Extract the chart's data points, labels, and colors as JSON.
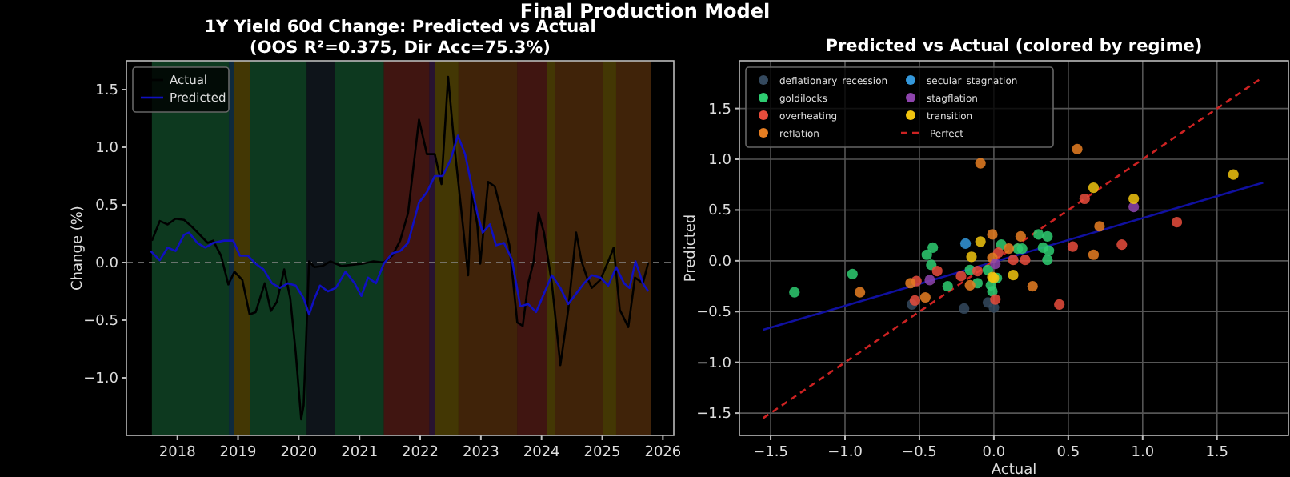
{
  "chart_data": [
    {
      "type": "line",
      "title": "1Y Yield 60d Change: Predicted vs Actual",
      "subtitle": "(OOS R²=0.375, Dir Acc=75.3%)",
      "ylabel": "Change (%)",
      "annotations": [
        "Final Production Model"
      ],
      "xlim": [
        2017.16,
        2026.18
      ],
      "ylim": [
        -1.5,
        1.75
      ],
      "xticks": [
        2018,
        2019,
        2020,
        2021,
        2022,
        2023,
        2024,
        2025,
        2026
      ],
      "yticks": [
        {
          "value": -1.0,
          "label": "−1.0"
        },
        {
          "value": -0.5,
          "label": "−0.5"
        },
        {
          "value": 0,
          "label": "0.0"
        },
        {
          "value": 0.5,
          "label": "0.5"
        },
        {
          "value": 1.0,
          "label": "1.0"
        },
        {
          "value": 1.5,
          "label": "1.5"
        }
      ],
      "legend": "top left",
      "grid": false,
      "ref_lines": [
        {
          "axis": "y",
          "value": 0,
          "color": "#888888",
          "line_style": "dashed"
        }
      ],
      "bands": [
        {
          "axis": "x",
          "from": 2017.58,
          "to": 2018.85,
          "color": "#2ecc71"
        },
        {
          "axis": "x",
          "from": 2018.85,
          "to": 2018.94,
          "color": "#3498db"
        },
        {
          "axis": "x",
          "from": 2018.94,
          "to": 2019.2,
          "color": "#f1c40f"
        },
        {
          "axis": "x",
          "from": 2019.2,
          "to": 2020.13,
          "color": "#2ecc71"
        },
        {
          "axis": "x",
          "from": 2020.13,
          "to": 2020.59,
          "color": "#34495e"
        },
        {
          "axis": "x",
          "from": 2020.59,
          "to": 2021.4,
          "color": "#2ecc71"
        },
        {
          "axis": "x",
          "from": 2021.4,
          "to": 2022.15,
          "color": "#e74c3c"
        },
        {
          "axis": "x",
          "from": 2022.15,
          "to": 2022.24,
          "color": "#8e44ad"
        },
        {
          "axis": "x",
          "from": 2022.24,
          "to": 2022.63,
          "color": "#f1c40f"
        },
        {
          "axis": "x",
          "from": 2022.63,
          "to": 2023.6,
          "color": "#e67e22"
        },
        {
          "axis": "x",
          "from": 2023.6,
          "to": 2024.09,
          "color": "#e74c3c"
        },
        {
          "axis": "x",
          "from": 2024.09,
          "to": 2024.22,
          "color": "#f1c40f"
        },
        {
          "axis": "x",
          "from": 2024.22,
          "to": 2025.01,
          "color": "#e67e22"
        },
        {
          "axis": "x",
          "from": 2025.01,
          "to": 2025.23,
          "color": "#f1c40f"
        },
        {
          "axis": "x",
          "from": 2025.23,
          "to": 2025.8,
          "color": "#e67e22"
        }
      ],
      "series": [
        {
          "name": "Actual",
          "color": "#000000",
          "x": [
            2017.58,
            2017.71,
            2017.84,
            2017.97,
            2018.11,
            2018.24,
            2018.37,
            2018.5,
            2018.59,
            2018.72,
            2018.84,
            2018.94,
            2019.07,
            2019.19,
            2019.29,
            2019.44,
            2019.54,
            2019.64,
            2019.76,
            2019.86,
            2019.95,
            2020.04,
            2020.08,
            2020.17,
            2020.26,
            2020.39,
            2020.52,
            2020.7,
            2020.88,
            2021.05,
            2021.23,
            2021.4,
            2021.54,
            2021.67,
            2021.8,
            2021.98,
            2022.11,
            2022.24,
            2022.35,
            2022.46,
            2022.56,
            2022.72,
            2022.79,
            2022.85,
            2022.94,
            2022.99,
            2023.12,
            2023.23,
            2023.34,
            2023.47,
            2023.6,
            2023.69,
            2023.78,
            2023.87,
            2023.95,
            2024.04,
            2024.17,
            2024.31,
            2024.44,
            2024.57,
            2024.66,
            2024.75,
            2024.83,
            2024.97,
            2025.1,
            2025.19,
            2025.29,
            2025.43,
            2025.54,
            2025.67,
            2025.76
          ],
          "values": [
            0.19,
            0.36,
            0.33,
            0.38,
            0.37,
            0.31,
            0.24,
            0.17,
            0.19,
            0.06,
            -0.19,
            -0.08,
            -0.15,
            -0.45,
            -0.43,
            -0.18,
            -0.42,
            -0.34,
            -0.06,
            -0.31,
            -0.78,
            -1.36,
            -1.24,
            0.01,
            -0.04,
            -0.03,
            0.01,
            -0.03,
            -0.02,
            -0.01,
            0.01,
            0.0,
            0.06,
            0.19,
            0.43,
            1.24,
            0.94,
            0.94,
            0.68,
            1.61,
            1.03,
            0.24,
            -0.11,
            0.61,
            0.33,
            -0.01,
            0.7,
            0.66,
            0.43,
            0.15,
            -0.52,
            -0.55,
            -0.18,
            0.01,
            0.43,
            0.26,
            -0.18,
            -0.89,
            -0.41,
            0.26,
            0.01,
            -0.13,
            -0.22,
            -0.15,
            0.01,
            0.13,
            -0.41,
            -0.56,
            -0.13,
            -0.18,
            0.0
          ]
        },
        {
          "name": "Predicted",
          "color": "#1010c0",
          "x": [
            2017.56,
            2017.71,
            2017.84,
            2017.97,
            2018.11,
            2018.19,
            2018.33,
            2018.46,
            2018.59,
            2018.77,
            2018.92,
            2019.03,
            2019.16,
            2019.29,
            2019.42,
            2019.56,
            2019.69,
            2019.82,
            2019.95,
            2020.08,
            2020.17,
            2020.26,
            2020.35,
            2020.48,
            2020.61,
            2020.77,
            2020.92,
            2021.03,
            2021.14,
            2021.27,
            2021.4,
            2021.54,
            2021.67,
            2021.8,
            2021.98,
            2022.11,
            2022.24,
            2022.37,
            2022.5,
            2022.62,
            2022.74,
            2022.85,
            2022.94,
            2023.03,
            2023.15,
            2023.25,
            2023.38,
            2023.51,
            2023.65,
            2023.78,
            2023.91,
            2024.04,
            2024.17,
            2024.31,
            2024.44,
            2024.57,
            2024.7,
            2024.83,
            2024.97,
            2025.1,
            2025.23,
            2025.36,
            2025.45,
            2025.55,
            2025.67,
            2025.76
          ],
          "values": [
            0.1,
            0.02,
            0.13,
            0.1,
            0.24,
            0.26,
            0.17,
            0.13,
            0.17,
            0.19,
            0.19,
            0.06,
            0.06,
            -0.01,
            -0.06,
            -0.18,
            -0.22,
            -0.18,
            -0.2,
            -0.31,
            -0.45,
            -0.31,
            -0.2,
            -0.25,
            -0.22,
            -0.08,
            -0.18,
            -0.29,
            -0.13,
            -0.18,
            -0.01,
            0.08,
            0.1,
            0.17,
            0.52,
            0.61,
            0.75,
            0.75,
            0.89,
            1.1,
            0.94,
            0.66,
            0.43,
            0.26,
            0.33,
            0.15,
            0.17,
            0.03,
            -0.38,
            -0.36,
            -0.43,
            -0.27,
            -0.11,
            -0.22,
            -0.36,
            -0.27,
            -0.18,
            -0.11,
            -0.13,
            -0.2,
            -0.04,
            -0.18,
            -0.22,
            0.01,
            -0.18,
            -0.25
          ]
        }
      ]
    },
    {
      "type": "scatter",
      "title": "Predicted vs Actual (colored by regime)",
      "xlabel": "Actual",
      "ylabel": "Predicted",
      "marker": "circle",
      "grid": true,
      "legend": "top left",
      "xlim": [
        -1.71,
        1.98
      ],
      "ylim": [
        -1.72,
        1.97
      ],
      "xticks": [
        {
          "value": -1.5,
          "label": "−1.5"
        },
        {
          "value": -1.0,
          "label": "−1.0"
        },
        {
          "value": -0.5,
          "label": "−0.5"
        },
        {
          "value": 0,
          "label": "0.0"
        },
        {
          "value": 0.5,
          "label": "0.5"
        },
        {
          "value": 1.0,
          "label": "1.0"
        },
        {
          "value": 1.5,
          "label": "1.5"
        }
      ],
      "yticks": [
        {
          "value": -1.5,
          "label": "−1.5"
        },
        {
          "value": -1.0,
          "label": "−1.0"
        },
        {
          "value": -0.5,
          "label": "−0.5"
        },
        {
          "value": 0,
          "label": "0.0"
        },
        {
          "value": 0.5,
          "label": "0.5"
        },
        {
          "value": 1.0,
          "label": "1.0"
        },
        {
          "value": 1.5,
          "label": "1.5"
        }
      ],
      "series": [
        {
          "type": "line",
          "marker": "none",
          "color": "#1010a0",
          "x": [
            -1.55,
            1.81
          ],
          "values": [
            -0.68,
            0.77
          ]
        },
        {
          "name": "deflationary_recession",
          "color": "#34495e",
          "x": [
            -0.55,
            -0.2,
            -0.04,
            0.0
          ],
          "values": [
            -0.43,
            -0.47,
            -0.41,
            -0.46
          ]
        },
        {
          "name": "goldilocks",
          "color": "#2ecc71",
          "x": [
            0.3,
            0.36,
            -1.34,
            -0.95,
            -0.45,
            -0.41,
            -0.42,
            -0.31,
            -0.16,
            -0.11,
            -0.04,
            -0.02,
            -0.01,
            0.02,
            0.05,
            0.16,
            0.19,
            0.33,
            0.37,
            0.36
          ],
          "values": [
            0.26,
            0.24,
            -0.31,
            -0.13,
            0.06,
            0.13,
            -0.04,
            -0.25,
            -0.09,
            -0.22,
            -0.09,
            -0.24,
            -0.3,
            -0.17,
            0.16,
            0.12,
            0.12,
            0.13,
            0.1,
            0.01
          ]
        },
        {
          "name": "overheating",
          "color": "#e74c3c",
          "x": [
            0.61,
            1.23,
            -0.52,
            -0.53,
            -0.38,
            -0.22,
            -0.11,
            0.01,
            0.03,
            0.13,
            0.21,
            0.44,
            0.53,
            0.86
          ],
          "values": [
            0.61,
            0.38,
            -0.2,
            -0.39,
            -0.1,
            -0.15,
            -0.1,
            -0.38,
            0.08,
            0.01,
            0.01,
            -0.43,
            0.14,
            0.16
          ]
        },
        {
          "name": "reflation",
          "color": "#e67e22",
          "x": [
            -0.09,
            0.56,
            0.71,
            -0.01,
            0.18,
            -0.9,
            -0.56,
            -0.46,
            -0.16,
            -0.01,
            0.1,
            0.26,
            0.67
          ],
          "values": [
            0.96,
            1.1,
            0.34,
            0.26,
            0.24,
            -0.31,
            -0.22,
            -0.36,
            -0.24,
            0.03,
            0.12,
            -0.25,
            0.06
          ]
        },
        {
          "name": "secular_stagnation",
          "color": "#3498db",
          "x": [
            -0.19
          ],
          "values": [
            0.17
          ]
        },
        {
          "name": "stagflation",
          "color": "#8e44ad",
          "x": [
            0.94,
            -0.43,
            0.01
          ],
          "values": [
            0.53,
            -0.19,
            -0.03
          ]
        },
        {
          "name": "transition",
          "color": "#f1c40f",
          "x": [
            0.67,
            1.61,
            0.94,
            -0.09,
            -0.15,
            -0.01,
            0.0,
            0.13
          ],
          "values": [
            0.72,
            0.85,
            0.61,
            0.19,
            0.04,
            -0.16,
            -0.17,
            -0.14
          ]
        },
        {
          "type": "line",
          "marker": "none",
          "name": "Perfect",
          "color": "#cc2222",
          "line_style": "dashed",
          "x": [
            -1.55,
            1.8
          ],
          "values": [
            -1.55,
            1.8
          ]
        }
      ]
    }
  ]
}
